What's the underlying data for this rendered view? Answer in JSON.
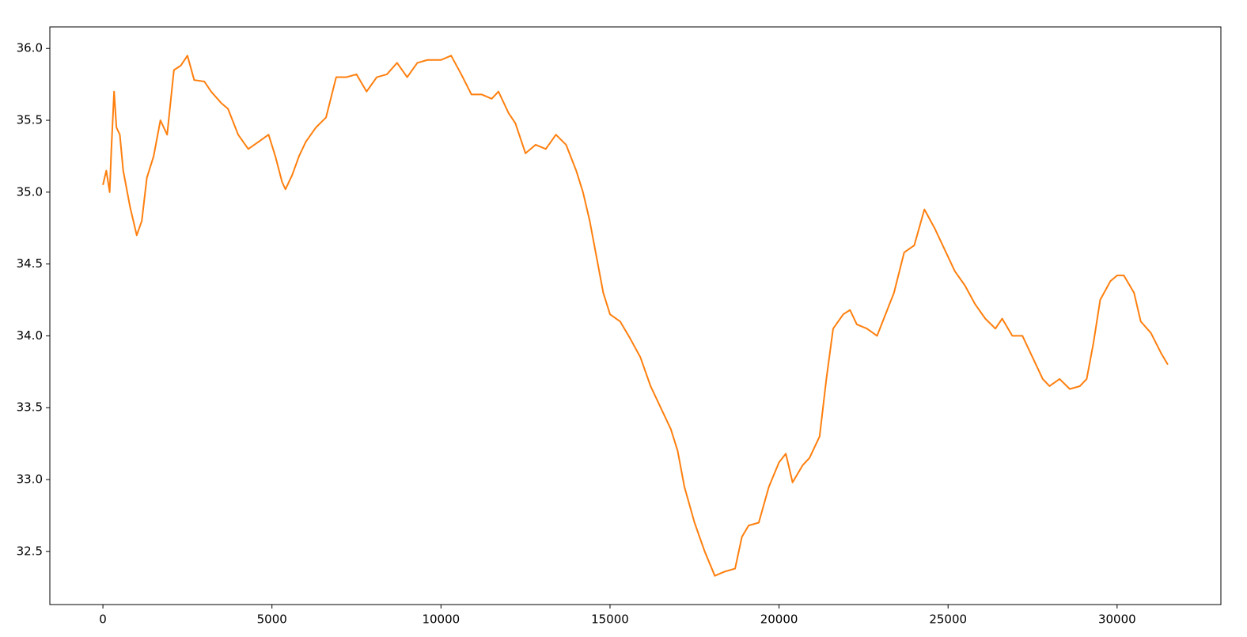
{
  "chart_data": {
    "type": "line",
    "x": [
      0,
      100,
      200,
      250,
      330,
      400,
      500,
      600,
      800,
      1000,
      1150,
      1300,
      1500,
      1700,
      1900,
      2100,
      2300,
      2500,
      2700,
      3000,
      3200,
      3500,
      3700,
      4000,
      4300,
      4600,
      4900,
      5100,
      5300,
      5400,
      5600,
      5800,
      6000,
      6300,
      6600,
      6900,
      7200,
      7500,
      7800,
      8100,
      8400,
      8700,
      9000,
      9300,
      9600,
      10000,
      10300,
      10600,
      10900,
      11200,
      11500,
      11700,
      12000,
      12200,
      12500,
      12800,
      13100,
      13400,
      13700,
      14000,
      14200,
      14400,
      14600,
      14800,
      15000,
      15300,
      15600,
      15900,
      16200,
      16500,
      16800,
      17000,
      17200,
      17500,
      17800,
      18100,
      18400,
      18700,
      18900,
      19100,
      19400,
      19700,
      20000,
      20200,
      20400,
      20700,
      20900,
      21200,
      21400,
      21600,
      21900,
      22100,
      22300,
      22600,
      22900,
      23100,
      23400,
      23700,
      24000,
      24300,
      24600,
      24900,
      25200,
      25500,
      25800,
      26100,
      26400,
      26600,
      26900,
      27200,
      27500,
      27800,
      28000,
      28300,
      28600,
      28900,
      29100,
      29300,
      29500,
      29800,
      30000,
      30200,
      30500,
      30700,
      31000,
      31300,
      31500
    ],
    "series": [
      {
        "color": "#ff7f0e",
        "values": [
          35.05,
          35.15,
          35.0,
          35.3,
          35.7,
          35.45,
          35.4,
          35.15,
          34.9,
          34.7,
          34.8,
          35.1,
          35.25,
          35.5,
          35.4,
          35.85,
          35.88,
          35.95,
          35.78,
          35.77,
          35.7,
          35.62,
          35.58,
          35.4,
          35.3,
          35.35,
          35.4,
          35.25,
          35.07,
          35.02,
          35.12,
          35.25,
          35.35,
          35.45,
          35.52,
          35.8,
          35.8,
          35.82,
          35.7,
          35.8,
          35.82,
          35.9,
          35.8,
          35.9,
          35.92,
          35.92,
          35.95,
          35.82,
          35.68,
          35.68,
          35.65,
          35.7,
          35.55,
          35.48,
          35.27,
          35.33,
          35.3,
          35.4,
          35.33,
          35.15,
          35.0,
          34.8,
          34.55,
          34.3,
          34.15,
          34.1,
          33.98,
          33.85,
          33.65,
          33.5,
          33.35,
          33.2,
          32.95,
          32.7,
          32.5,
          32.33,
          32.36,
          32.38,
          32.6,
          32.68,
          32.7,
          32.95,
          33.12,
          33.18,
          32.98,
          33.1,
          33.15,
          33.3,
          33.7,
          34.05,
          34.15,
          34.18,
          34.08,
          34.05,
          34.0,
          34.12,
          34.3,
          34.58,
          34.63,
          34.88,
          34.75,
          34.6,
          34.45,
          34.35,
          34.22,
          34.12,
          34.05,
          34.12,
          34.0,
          34.0,
          33.85,
          33.7,
          33.65,
          33.7,
          33.63,
          33.65,
          33.7,
          33.95,
          34.25,
          34.38,
          34.42,
          34.42,
          34.3,
          34.1,
          34.02,
          33.88,
          33.8
        ]
      }
    ],
    "xlim": [
      -1570,
      33070
    ],
    "xticks": [
      0,
      5000,
      10000,
      15000,
      20000,
      25000,
      30000
    ],
    "ylim": [
      32.13,
      36.15
    ],
    "yticks": [
      32.5,
      {
        "value": 33,
        "label": "33.0"
      },
      33.5,
      {
        "value": 34,
        "label": "34.0"
      },
      34.5,
      {
        "value": 35,
        "label": "35.0"
      },
      35.5,
      {
        "value": 36,
        "label": "36.0"
      }
    ]
  }
}
